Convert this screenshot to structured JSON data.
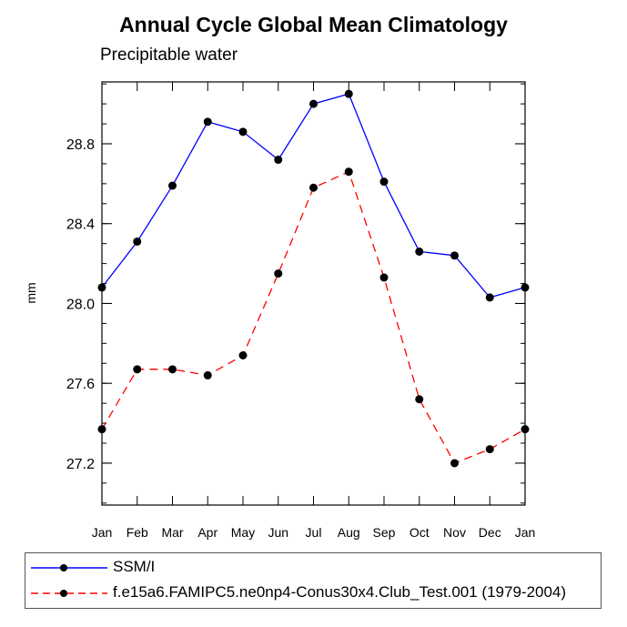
{
  "chart_data": {
    "type": "line",
    "title": "Annual Cycle Global Mean Climatology",
    "subtitle": "Precipitable water",
    "xlabel": "",
    "ylabel": "mm",
    "categories": [
      "Jan",
      "Feb",
      "Mar",
      "Apr",
      "May",
      "Jun",
      "Jul",
      "Aug",
      "Sep",
      "Oct",
      "Nov",
      "Dec",
      "Jan"
    ],
    "ylim": [
      26.99,
      29.11
    ],
    "yticks": [
      27.2,
      27.6,
      28.0,
      28.4,
      28.8
    ],
    "ytick_labels": [
      "27.2",
      "27.6",
      "28.0",
      "28.4",
      "28.8"
    ],
    "grid": false,
    "legend_position": "bottom",
    "series": [
      {
        "name": "SSM/I",
        "color": "#0000ff",
        "style": "solid",
        "marker": "circle",
        "values": [
          28.08,
          28.31,
          28.59,
          28.91,
          28.86,
          28.72,
          29.0,
          29.05,
          28.61,
          28.26,
          28.24,
          28.03,
          28.08
        ]
      },
      {
        "name": "f.e15a6.FAMIPC5.ne0np4-Conus30x4.Club_Test.001 (1979-2004)",
        "color": "#ff0000",
        "style": "dashed",
        "marker": "circle",
        "values": [
          27.37,
          27.67,
          27.67,
          27.64,
          27.74,
          28.15,
          28.58,
          28.66,
          28.13,
          27.52,
          27.2,
          27.27,
          27.37
        ]
      }
    ]
  }
}
